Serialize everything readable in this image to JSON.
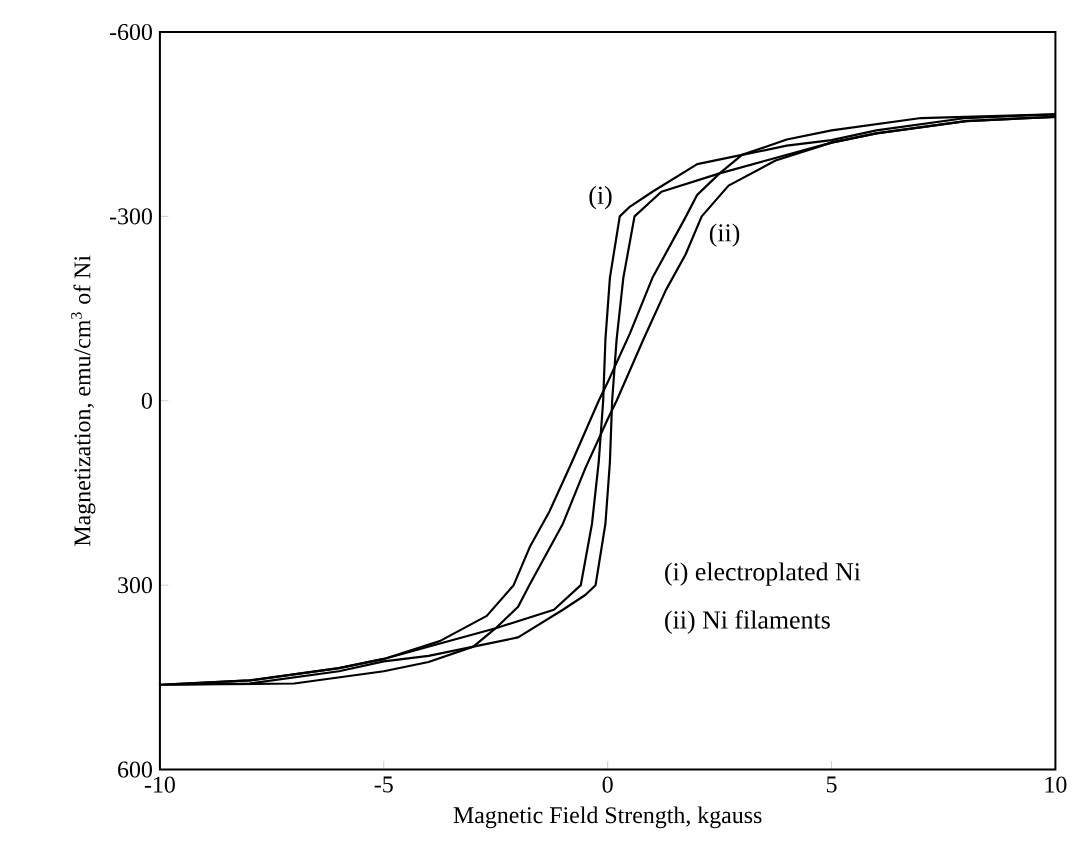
{
  "chart_data": {
    "type": "line",
    "xlabel": "Magnetic Field Strength,  kgauss",
    "ylabel": "Magnetization, emu/cm$^{3}$ of Ni",
    "xlim": [
      -10,
      10
    ],
    "xticks": [
      -10,
      -5,
      0,
      5,
      10
    ],
    "ylim": [
      600,
      -600
    ],
    "yticks": [
      -600,
      -300,
      0,
      300,
      600
    ],
    "grid": false,
    "marker": "none",
    "line_style": "solid",
    "series": [
      {
        "color": "#000000",
        "x": [
          10,
          8,
          6,
          5,
          4,
          3,
          2,
          1,
          0.5,
          0.27,
          0.05,
          -0.05,
          -0.1,
          -0.2,
          -0.35,
          -0.6,
          -1.2,
          -2.5,
          -3.5,
          -5,
          -6,
          -8,
          -10,
          -8,
          -6,
          -5,
          -4,
          -3,
          -2,
          -1,
          -0.5,
          -0.27,
          -0.05,
          0.05,
          0.1,
          0.2,
          0.35,
          0.6,
          1.2,
          2.5,
          3.5,
          5,
          6,
          8,
          10
        ],
        "values": [
          -466,
          -460,
          -440,
          -424,
          -415,
          -400,
          -385,
          -340,
          -316,
          -300,
          -200,
          -100,
          0,
          100,
          200,
          300,
          340,
          370,
          390,
          420,
          435,
          455,
          462,
          460,
          440,
          424,
          415,
          400,
          385,
          340,
          316,
          300,
          200,
          100,
          0,
          -100,
          -200,
          -300,
          -340,
          -370,
          -390,
          -420,
          -435,
          -455,
          -462
        ]
      },
      {
        "color": "#000000",
        "x": [
          10,
          7,
          5,
          4,
          3,
          2.5,
          2,
          1.75,
          1,
          0.5,
          0,
          -0.2,
          -0.8,
          -1.3,
          -1.74,
          -2.1,
          -2.7,
          -3.75,
          -5,
          -6,
          -8,
          -10,
          -7,
          -5,
          -4,
          -3,
          -2.5,
          -2,
          -1.75,
          -1,
          -0.5,
          0,
          0.2,
          0.8,
          1.3,
          1.74,
          2.1,
          2.7,
          3.75,
          5,
          6,
          8,
          10
        ],
        "values": [
          -466,
          -460,
          -440,
          -425,
          -400,
          -370,
          -335,
          -300,
          -200,
          -110,
          -30,
          0,
          100,
          180,
          238,
          300,
          350,
          391,
          420,
          435,
          455,
          462,
          460,
          440,
          425,
          400,
          370,
          335,
          300,
          200,
          110,
          30,
          0,
          -100,
          -180,
          -238,
          -300,
          -350,
          -391,
          -420,
          -435,
          -455,
          -462
        ]
      }
    ],
    "annotations": [
      {
        "text": "(i)",
        "x": 0.27,
        "y": -300
      },
      {
        "text": "(ii)",
        "x": 2.1,
        "y": -300
      },
      "(i)  electroplated Ni",
      "(ii) Ni filaments"
    ]
  }
}
